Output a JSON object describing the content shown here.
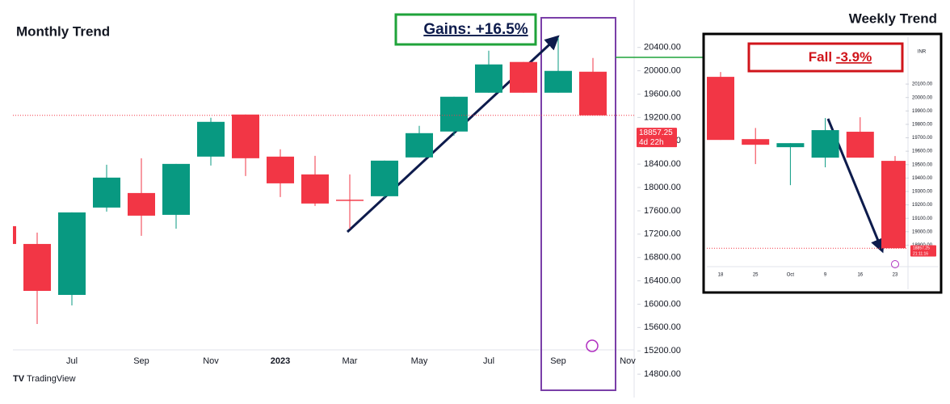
{
  "chart_data": [
    {
      "type": "candlestick",
      "title": "Monthly Trend",
      "annotation": "Gains: +16.5%",
      "watermark": "TradingView",
      "categories": [
        null,
        null,
        "Jul",
        null,
        "Sep",
        null,
        "Nov",
        null,
        "2023",
        null,
        "Mar",
        null,
        "May",
        null,
        "Jul",
        null,
        "Sep",
        null,
        "Nov"
      ],
      "open": [
        17337,
        17032,
        16159,
        17656,
        17905,
        17531,
        18529,
        19250,
        18529,
        18224,
        17790,
        17850,
        18515,
        18959,
        19624,
        20151,
        19624,
        19984,
        null
      ],
      "high": [
        17337,
        17226,
        17573,
        18390,
        18501,
        18404,
        19194,
        19250,
        18654,
        18543,
        18224,
        18460,
        19056,
        19555,
        20345,
        20151,
        20566,
        20220,
        null
      ],
      "low": [
        17032,
        15660,
        15979,
        17586,
        17171,
        17295,
        18376,
        18196,
        17836,
        17683,
        17295,
        17822,
        18515,
        18889,
        19624,
        19624,
        19624,
        19236,
        null
      ],
      "close": [
        17032,
        16228,
        17573,
        18169,
        17517,
        18404,
        19125,
        18501,
        18071,
        17725,
        17770,
        18460,
        18931,
        19555,
        20109,
        19624,
        19998,
        19236,
        null
      ],
      "up_color": "#089981",
      "down_color": "#f23645",
      "current_price": 18857.25,
      "countdown": "4d 22h",
      "ylim": [
        14400,
        20950
      ],
      "yticks": [
        {
          "value": 14800,
          "label": "14800.00"
        },
        {
          "value": 15200,
          "label": "15200.00"
        },
        {
          "value": 15600,
          "label": "15600.00"
        },
        {
          "value": 16000,
          "label": "16000.00"
        },
        {
          "value": 16400,
          "label": "16400.00"
        },
        {
          "value": 16800,
          "label": "16800.00"
        },
        {
          "value": 17200,
          "label": "17200.00"
        },
        {
          "value": 17600,
          "label": "17600.00"
        },
        {
          "value": 18000,
          "label": "18000.00"
        },
        {
          "value": 18400,
          "label": "18400.00"
        },
        {
          "value": 18800,
          "label": "18800.00"
        },
        {
          "value": 19200,
          "label": "19200.00"
        },
        {
          "value": 19600,
          "label": "19600.00"
        },
        {
          "value": 20000,
          "label": "20000.00"
        },
        {
          "value": 20400,
          "label": "20400.00"
        }
      ]
    },
    {
      "type": "candlestick",
      "title": "Weekly Trend",
      "annotation_label": "Fall",
      "annotation_value": "-3.9%",
      "currency": "INR",
      "categories": [
        "18",
        "25",
        "Oct",
        "9",
        "16",
        "23"
      ],
      "open": [
        20154,
        19690,
        19630,
        19552,
        19745,
        19528
      ],
      "high": [
        20190,
        19773,
        19660,
        19847,
        19853,
        19564
      ],
      "low": [
        19684,
        19504,
        19347,
        19480,
        19552,
        18877
      ],
      "close": [
        19684,
        19648,
        19660,
        19757,
        19552,
        18877
      ],
      "up_color": "#089981",
      "down_color": "#f23645",
      "current_price": 18857.25,
      "countdown": "21:11:16",
      "ylim": [
        18740,
        20275
      ],
      "yticks": [
        {
          "value": 18900,
          "label": "18900.00"
        },
        {
          "value": 19000,
          "label": "19000.00"
        },
        {
          "value": 19100,
          "label": "19100.00"
        },
        {
          "value": 19200,
          "label": "19200.00"
        },
        {
          "value": 19300,
          "label": "19300.00"
        },
        {
          "value": 19400,
          "label": "19400.00"
        },
        {
          "value": 19500,
          "label": "19500.00"
        },
        {
          "value": 19600,
          "label": "19600.00"
        },
        {
          "value": 19700,
          "label": "19700.00"
        },
        {
          "value": 19800,
          "label": "19800.00"
        },
        {
          "value": 19900,
          "label": "19900.00"
        },
        {
          "value": 20000,
          "label": "20000.00"
        },
        {
          "value": 20100,
          "label": "20100.00"
        }
      ]
    }
  ]
}
